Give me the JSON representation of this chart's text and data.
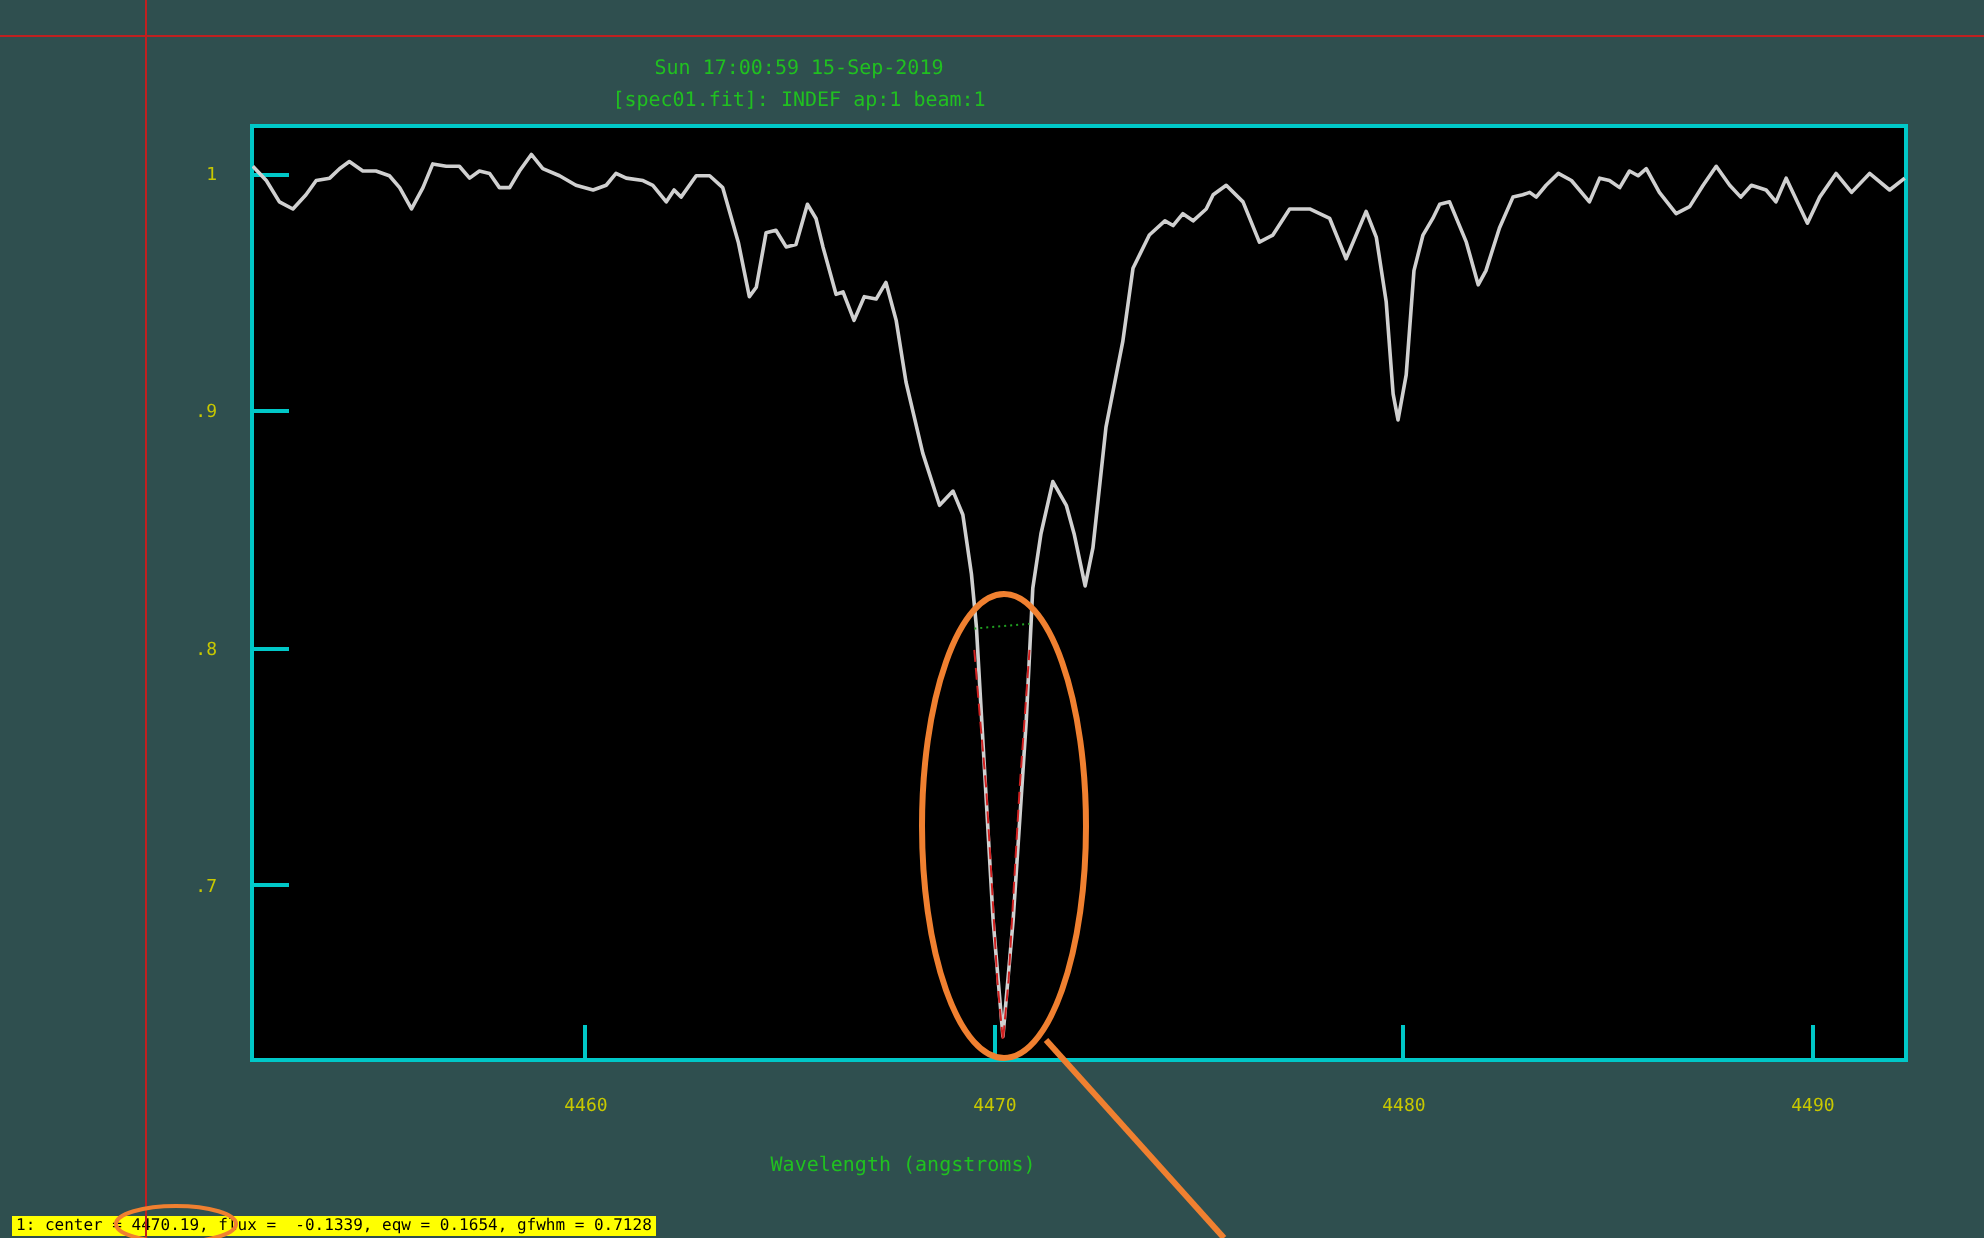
{
  "chart_data": {
    "type": "line",
    "title": "Sun 17:00:59 15-Sep-2019",
    "subtitle": "[spec01.fit]:  INDEF ap:1 beam:1",
    "xlabel": "Wavelength (angstroms)",
    "annotations": [
      "1: center = 4470.19, flux =  -0.1339, eqw = 0.1654, gfwhm = 0.7128"
    ],
    "xlim": [
      4451.86,
      4492.3
    ],
    "ylim": [
      0.626,
      1.02
    ],
    "xticks": [
      4460,
      4470,
      4480,
      4490
    ],
    "yticks": [
      {
        "value": 0.7,
        "label": ".7"
      },
      {
        "value": 0.8,
        "label": ".8"
      },
      {
        "value": 0.9,
        "label": ".9"
      },
      1
    ],
    "series": [
      {
        "color": "#d0d0d0",
        "line_style": "solid",
        "x": [
          4451.88,
          4452.21,
          4452.53,
          4452.86,
          4453.18,
          4453.43,
          4453.76,
          4454.0,
          4454.24,
          4454.57,
          4454.89,
          4455.22,
          4455.47,
          4455.76,
          4456.04,
          4456.28,
          4456.61,
          4456.93,
          4457.18,
          4457.42,
          4457.67,
          4457.91,
          4458.16,
          4458.4,
          4458.69,
          4458.97,
          4459.38,
          4459.78,
          4460.2,
          4460.52,
          4460.76,
          4461.01,
          4461.42,
          4461.66,
          4461.99,
          4462.18,
          4462.35,
          4462.72,
          4463.05,
          4463.37,
          4463.75,
          4464.02,
          4464.19,
          4464.43,
          4464.67,
          4464.92,
          4465.16,
          4465.44,
          4465.65,
          4465.82,
          4466.14,
          4466.31,
          4466.58,
          4466.83,
          4467.12,
          4467.36,
          4467.61,
          4467.85,
          4468.26,
          4468.67,
          4469.0,
          4469.24,
          4469.45,
          4469.57,
          4469.98,
          4470.22,
          4470.47,
          4470.79,
          4470.95,
          4471.15,
          4471.44,
          4471.77,
          4471.96,
          4472.23,
          4472.42,
          4472.74,
          4473.15,
          4473.4,
          4473.8,
          4474.18,
          4474.38,
          4474.62,
          4474.87,
          4475.19,
          4475.36,
          4475.68,
          4476.09,
          4476.49,
          4476.82,
          4477.23,
          4477.72,
          4478.21,
          4478.61,
          4479.1,
          4479.35,
          4479.59,
          4479.76,
          4479.88,
          4480.08,
          4480.27,
          4480.49,
          4480.73,
          4480.9,
          4481.14,
          4481.55,
          4481.84,
          4482.03,
          4482.36,
          4482.69,
          4482.93,
          4483.1,
          4483.26,
          4483.5,
          4483.8,
          4484.12,
          4484.56,
          4484.81,
          4485.05,
          4485.3,
          4485.54,
          4485.75,
          4485.95,
          4486.27,
          4486.68,
          4487.01,
          4487.34,
          4487.66,
          4487.99,
          4488.26,
          4488.52,
          4488.88,
          4489.12,
          4489.37,
          4489.89,
          4490.19,
          4490.59,
          4490.97,
          4491.41,
          4491.9,
          4492.27
        ],
        "values": [
          1.003,
          0.997,
          0.988,
          0.985,
          0.991,
          0.997,
          0.998,
          1.002,
          1.005,
          1.001,
          1.001,
          0.999,
          0.994,
          0.985,
          0.994,
          1.004,
          1.003,
          1.003,
          0.998,
          1.001,
          1.0,
          0.994,
          0.994,
          1.001,
          1.008,
          1.002,
          0.999,
          0.995,
          0.993,
          0.995,
          1.0,
          0.998,
          0.997,
          0.995,
          0.988,
          0.993,
          0.99,
          0.999,
          0.999,
          0.994,
          0.971,
          0.948,
          0.952,
          0.975,
          0.976,
          0.969,
          0.97,
          0.987,
          0.981,
          0.969,
          0.949,
          0.95,
          0.938,
          0.948,
          0.947,
          0.954,
          0.938,
          0.912,
          0.882,
          0.86,
          0.866,
          0.856,
          0.831,
          0.809,
          0.685,
          0.636,
          0.685,
          0.769,
          0.825,
          0.848,
          0.87,
          0.86,
          0.848,
          0.826,
          0.842,
          0.893,
          0.929,
          0.96,
          0.974,
          0.98,
          0.978,
          0.983,
          0.98,
          0.985,
          0.991,
          0.995,
          0.988,
          0.971,
          0.974,
          0.985,
          0.985,
          0.981,
          0.964,
          0.984,
          0.973,
          0.946,
          0.907,
          0.896,
          0.915,
          0.959,
          0.974,
          0.981,
          0.987,
          0.988,
          0.971,
          0.953,
          0.959,
          0.977,
          0.99,
          0.991,
          0.992,
          0.99,
          0.995,
          1.0,
          0.997,
          0.988,
          0.998,
          0.997,
          0.994,
          1.001,
          0.999,
          1.002,
          0.992,
          0.983,
          0.986,
          0.995,
          1.003,
          0.995,
          0.99,
          0.995,
          0.993,
          0.988,
          0.998,
          0.979,
          0.99,
          1.0,
          0.992,
          1.0,
          0.993,
          0.998
        ]
      },
      {
        "color": "#d02020",
        "line_style": "dashed",
        "x": [
          4469.52,
          4469.66,
          4469.81,
          4469.95,
          4470.08,
          4470.22,
          4470.36,
          4470.49,
          4470.63,
          4470.75,
          4470.87
        ],
        "values": [
          0.799,
          0.77,
          0.741,
          0.7,
          0.66,
          0.634,
          0.66,
          0.7,
          0.741,
          0.77,
          0.799
        ]
      },
      {
        "color": "#20a020",
        "line_style": "dotted",
        "x": [
          4469.52,
          4470.87
        ],
        "values": [
          0.808,
          0.81
        ]
      }
    ]
  }
}
